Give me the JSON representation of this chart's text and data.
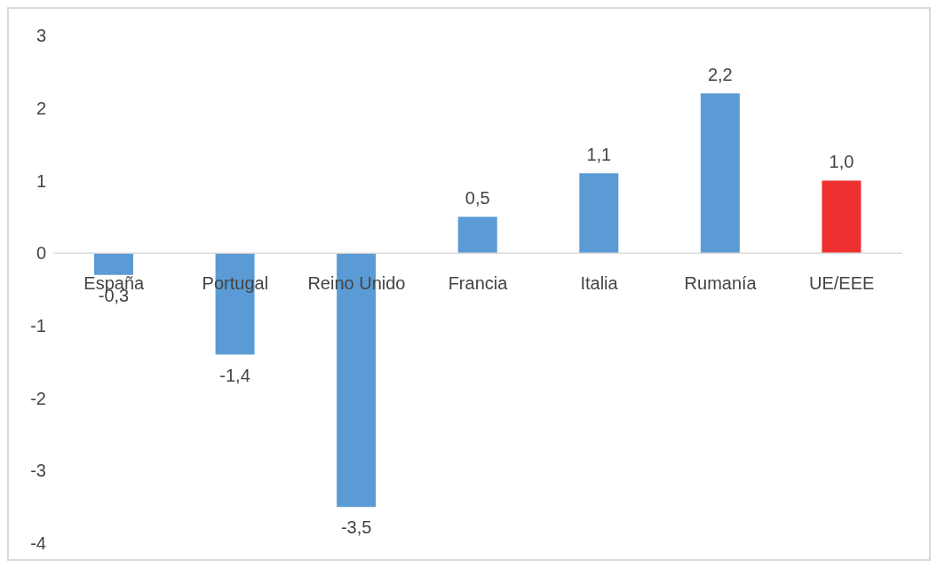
{
  "chart_data": {
    "type": "bar",
    "categories": [
      "España",
      "Portugal",
      "Reino Unido",
      "Francia",
      "Italia",
      "Rumanía",
      "UE/EEE"
    ],
    "values": [
      -0.3,
      -1.4,
      -3.5,
      0.5,
      1.1,
      2.2,
      1.0
    ],
    "colors": [
      "#5b9bd5",
      "#5b9bd5",
      "#5b9bd5",
      "#5b9bd5",
      "#5b9bd5",
      "#5b9bd5",
      "#ee3030"
    ],
    "value_labels": [
      "-0,3",
      "-1,4",
      "-3,5",
      "0,5",
      "1,1",
      "2,2",
      "1,0"
    ],
    "ylim": [
      -4,
      3
    ],
    "yticks": [
      -4,
      -3,
      -2,
      -1,
      0,
      1,
      2,
      3
    ],
    "grid": false,
    "legend": false
  }
}
